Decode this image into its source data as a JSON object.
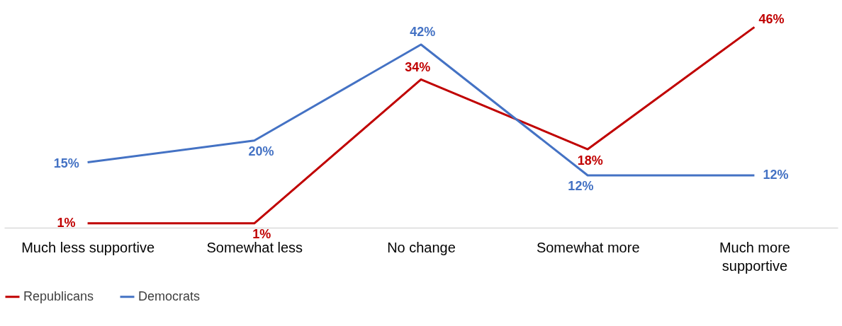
{
  "chart_data": {
    "type": "line",
    "categories": [
      "Much less supportive",
      "Somewhat less",
      "No change",
      "Somewhat more",
      "Much more\nsupportive"
    ],
    "series": [
      {
        "name": "Republicans",
        "color": "#c00000",
        "values": [
          1,
          1,
          34,
          18,
          46
        ],
        "value_labels": [
          "1%",
          "1%",
          "34%",
          "18%",
          "46%"
        ]
      },
      {
        "name": "Democrats",
        "color": "#4472c4",
        "values": [
          15,
          20,
          42,
          12,
          12
        ],
        "value_labels": [
          "15%",
          "20%",
          "42%",
          "12%",
          "12%"
        ]
      }
    ],
    "legend": "bottom",
    "marker": "none",
    "line_style": "solid",
    "grid": false
  }
}
